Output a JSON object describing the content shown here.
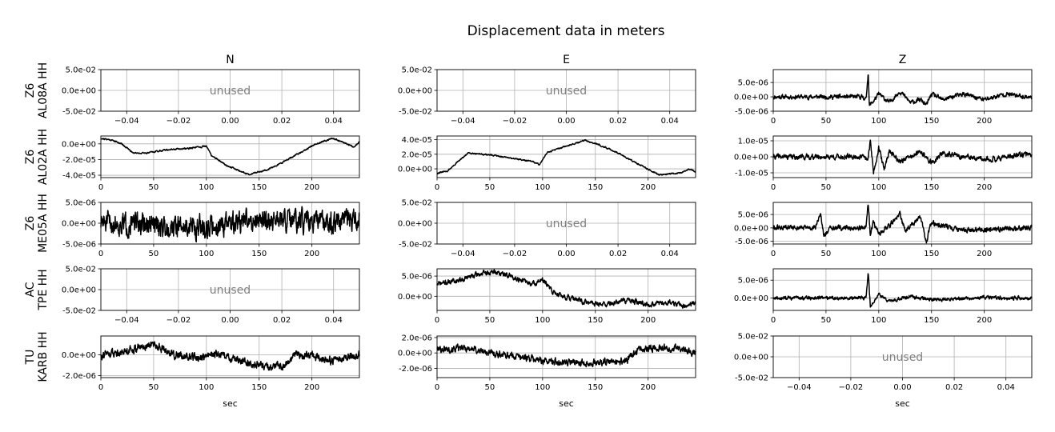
{
  "chart_data": {
    "type": "line",
    "title": "Displacement data in meters",
    "columns": [
      "N",
      "E",
      "Z"
    ],
    "rows": [
      {
        "network": "Z6",
        "station": "AL08A HH"
      },
      {
        "network": "Z6",
        "station": "AL02A HH"
      },
      {
        "network": "Z6",
        "station": "ME05A HH"
      },
      {
        "network": "AC",
        "station": "TPE HH"
      },
      {
        "network": "TU",
        "station": "KARB HH"
      }
    ],
    "xlabel": "sec",
    "unused_label": "unused",
    "unused_axes": {
      "xlim": [
        -0.05,
        0.05
      ],
      "ylim": [
        -0.05,
        0.05
      ],
      "xticks": [
        -0.04,
        -0.02,
        0.0,
        0.02,
        0.04
      ],
      "xticklabels": [
        "−0.04",
        "−0.02",
        "0.00",
        "0.02",
        "0.04"
      ],
      "yticks": [
        -0.05,
        0.0,
        0.05
      ],
      "yticklabels": [
        "-5.0e-02",
        "0.0e+00",
        "5.0e-02"
      ]
    },
    "time_xticks": [
      0,
      50,
      100,
      150,
      200
    ],
    "xlim": [
      0,
      245
    ],
    "grid": true,
    "panels": [
      {
        "row": 0,
        "col": 0,
        "unused": true
      },
      {
        "row": 0,
        "col": 1,
        "unused": true
      },
      {
        "row": 0,
        "col": 2,
        "unused": false,
        "ylim": [
          -5e-06,
          9.5e-06
        ],
        "yticks": [
          5e-06,
          0,
          -5e-06
        ],
        "yticklabels": [
          "5.0e-06",
          "0.0e+00",
          "-5.0e-06"
        ],
        "keypoints": [
          [
            0,
            0
          ],
          [
            85,
            0
          ],
          [
            88,
            -1e-06
          ],
          [
            90,
            9e-06
          ],
          [
            91,
            -3e-06
          ],
          [
            95,
            -1.5e-06
          ],
          [
            100,
            1e-06
          ],
          [
            110,
            -2e-06
          ],
          [
            120,
            2e-06
          ],
          [
            130,
            -2e-06
          ],
          [
            140,
            -1e-06
          ],
          [
            145,
            -3e-06
          ],
          [
            150,
            1e-06
          ],
          [
            160,
            -1e-06
          ],
          [
            180,
            1e-06
          ],
          [
            200,
            -1e-06
          ],
          [
            220,
            1e-06
          ],
          [
            245,
            -2e-07
          ]
        ],
        "noise": 1.2e-06,
        "seed": 11
      },
      {
        "row": 1,
        "col": 0,
        "unused": false,
        "ylim": [
          -4.3e-05,
          1e-05
        ],
        "yticks": [
          0,
          -2e-05,
          -4e-05
        ],
        "yticklabels": [
          "0.0e+00",
          "-2.0e-05",
          "-4.0e-05"
        ],
        "keypoints": [
          [
            0,
            7e-06
          ],
          [
            10,
            5e-06
          ],
          [
            20,
            0
          ],
          [
            30,
            -1.1e-05
          ],
          [
            40,
            -1.2e-05
          ],
          [
            60,
            -8e-06
          ],
          [
            80,
            -6e-06
          ],
          [
            95,
            -4e-06
          ],
          [
            100,
            -3e-06
          ],
          [
            105,
            -1.5e-05
          ],
          [
            120,
            -2.8e-05
          ],
          [
            140,
            -3.9e-05
          ],
          [
            160,
            -3.2e-05
          ],
          [
            180,
            -1.8e-05
          ],
          [
            200,
            -3e-06
          ],
          [
            210,
            3e-06
          ],
          [
            220,
            7e-06
          ],
          [
            240,
            -4e-06
          ],
          [
            245,
            3e-06
          ]
        ],
        "noise": 1.5e-06,
        "seed": 21
      },
      {
        "row": 1,
        "col": 1,
        "unused": false,
        "ylim": [
          -1.2e-05,
          4.5e-05
        ],
        "yticks": [
          4e-05,
          2e-05,
          0
        ],
        "yticklabels": [
          "4.0e-05",
          "2.0e-05",
          "0.0e+00"
        ],
        "keypoints": [
          [
            0,
            -6e-06
          ],
          [
            10,
            -3e-06
          ],
          [
            20,
            1e-05
          ],
          [
            30,
            2.2e-05
          ],
          [
            50,
            1.9e-05
          ],
          [
            70,
            1.5e-05
          ],
          [
            90,
            1e-05
          ],
          [
            97,
            6e-06
          ],
          [
            105,
            2.3e-05
          ],
          [
            120,
            3e-05
          ],
          [
            140,
            3.9e-05
          ],
          [
            150,
            3.5e-05
          ],
          [
            170,
            2.3e-05
          ],
          [
            190,
            7e-06
          ],
          [
            210,
            -8e-06
          ],
          [
            230,
            -6e-06
          ],
          [
            240,
            0
          ],
          [
            245,
            -5e-06
          ]
        ],
        "noise": 1.5e-06,
        "seed": 31
      },
      {
        "row": 1,
        "col": 2,
        "unused": false,
        "ylim": [
          -1.3e-05,
          1.3e-05
        ],
        "yticks": [
          1e-05,
          0,
          -1e-05
        ],
        "yticklabels": [
          "1.0e-05",
          "0.0e+00",
          "-1.0e-05"
        ],
        "keypoints": [
          [
            0,
            0
          ],
          [
            85,
            0
          ],
          [
            90,
            -2e-06
          ],
          [
            92,
            1.1e-05
          ],
          [
            95,
            -1e-05
          ],
          [
            100,
            6e-06
          ],
          [
            105,
            -8e-06
          ],
          [
            110,
            4e-06
          ],
          [
            120,
            -3e-06
          ],
          [
            140,
            3e-06
          ],
          [
            150,
            -4e-06
          ],
          [
            160,
            2e-06
          ],
          [
            200,
            -2e-06
          ],
          [
            245,
            2e-06
          ]
        ],
        "noise": 2.5e-06,
        "seed": 41
      },
      {
        "row": 2,
        "col": 0,
        "unused": false,
        "ylim": [
          -5e-06,
          5e-06
        ],
        "yticks": [
          5e-06,
          0,
          -5e-06
        ],
        "yticklabels": [
          "5.0e-06",
          "0.0e+00",
          "-5.0e-06"
        ],
        "keypoints": [
          [
            0,
            0
          ],
          [
            50,
            -5e-07
          ],
          [
            100,
            -1e-06
          ],
          [
            150,
            1e-06
          ],
          [
            200,
            0
          ],
          [
            245,
            5e-07
          ]
        ],
        "noise": 4.2e-06,
        "seed": 51
      },
      {
        "row": 2,
        "col": 1,
        "unused": true
      },
      {
        "row": 2,
        "col": 2,
        "unused": false,
        "ylim": [
          -6e-06,
          9.5e-06
        ],
        "yticks": [
          5e-06,
          0,
          -5e-06
        ],
        "yticklabels": [
          "5.0e-06",
          "0.0e+00",
          "-5.0e-06"
        ],
        "keypoints": [
          [
            0,
            0
          ],
          [
            40,
            0
          ],
          [
            45,
            5e-06
          ],
          [
            48,
            -3e-06
          ],
          [
            55,
            0
          ],
          [
            88,
            0
          ],
          [
            90,
            9e-06
          ],
          [
            92,
            -3e-06
          ],
          [
            95,
            2e-06
          ],
          [
            100,
            -2e-06
          ],
          [
            110,
            1e-06
          ],
          [
            120,
            5e-06
          ],
          [
            125,
            -1e-06
          ],
          [
            140,
            4e-06
          ],
          [
            145,
            -5e-06
          ],
          [
            150,
            2e-06
          ],
          [
            180,
            -1e-06
          ],
          [
            245,
            0
          ]
        ],
        "noise": 1.5e-06,
        "seed": 61
      },
      {
        "row": 3,
        "col": 0,
        "unused": true
      },
      {
        "row": 3,
        "col": 1,
        "unused": false,
        "ylim": [
          -3.5e-06,
          6.8e-06
        ],
        "yticks": [
          5e-06,
          0
        ],
        "yticklabels": [
          "5.0e-06",
          "0.0e+00"
        ],
        "keypoints": [
          [
            0,
            3e-06
          ],
          [
            20,
            4e-06
          ],
          [
            40,
            5.5e-06
          ],
          [
            55,
            6e-06
          ],
          [
            70,
            5e-06
          ],
          [
            90,
            3e-06
          ],
          [
            100,
            4e-06
          ],
          [
            110,
            1e-06
          ],
          [
            120,
            0
          ],
          [
            140,
            -1.5e-06
          ],
          [
            160,
            -2e-06
          ],
          [
            180,
            -1e-06
          ],
          [
            200,
            -2e-06
          ],
          [
            220,
            -1.5e-06
          ],
          [
            235,
            -2.5e-06
          ],
          [
            245,
            -1.5e-06
          ]
        ],
        "noise": 1e-06,
        "seed": 71
      },
      {
        "row": 3,
        "col": 2,
        "unused": false,
        "ylim": [
          -3.5e-06,
          8.2e-06
        ],
        "yticks": [
          5e-06,
          0
        ],
        "yticklabels": [
          "5.0e-06",
          "0.0e+00"
        ],
        "keypoints": [
          [
            0,
            0
          ],
          [
            88,
            0
          ],
          [
            90,
            7.5e-06
          ],
          [
            92,
            -2.5e-06
          ],
          [
            95,
            -1e-06
          ],
          [
            100,
            1e-06
          ],
          [
            110,
            -1e-06
          ],
          [
            130,
            5e-07
          ],
          [
            150,
            -5e-07
          ],
          [
            200,
            0
          ],
          [
            245,
            0
          ]
        ],
        "noise": 8e-07,
        "seed": 81
      },
      {
        "row": 4,
        "col": 0,
        "unused": false,
        "ylim": [
          -2.2e-06,
          1.8e-06
        ],
        "yticks": [
          0,
          -2e-06
        ],
        "yticklabels": [
          "0.0e+00",
          "-2.0e-06"
        ],
        "keypoints": [
          [
            0,
            0
          ],
          [
            20,
            3e-07
          ],
          [
            40,
            8e-07
          ],
          [
            50,
            1e-06
          ],
          [
            70,
            0
          ],
          [
            90,
            -3e-07
          ],
          [
            110,
            0
          ],
          [
            130,
            -5e-07
          ],
          [
            150,
            -1e-06
          ],
          [
            170,
            -1.2e-06
          ],
          [
            185,
            0
          ],
          [
            200,
            -1e-07
          ],
          [
            220,
            -6e-07
          ],
          [
            245,
            0
          ]
        ],
        "noise": 6e-07,
        "seed": 91
      },
      {
        "row": 4,
        "col": 1,
        "unused": false,
        "ylim": [
          -3.2e-06,
          2.2e-06
        ],
        "yticks": [
          2e-06,
          0,
          -2e-06
        ],
        "yticklabels": [
          "2.0e-06",
          "0.0e+00",
          "-2.0e-06"
        ],
        "keypoints": [
          [
            0,
            5e-07
          ],
          [
            30,
            6e-07
          ],
          [
            50,
            0
          ],
          [
            80,
            -5e-07
          ],
          [
            100,
            -1e-06
          ],
          [
            120,
            -1.2e-06
          ],
          [
            150,
            -1.3e-06
          ],
          [
            180,
            -1e-06
          ],
          [
            190,
            4e-07
          ],
          [
            210,
            7e-07
          ],
          [
            230,
            5e-07
          ],
          [
            245,
            0
          ]
        ],
        "noise": 7e-07,
        "seed": 101
      },
      {
        "row": 4,
        "col": 2,
        "unused": true
      }
    ]
  }
}
